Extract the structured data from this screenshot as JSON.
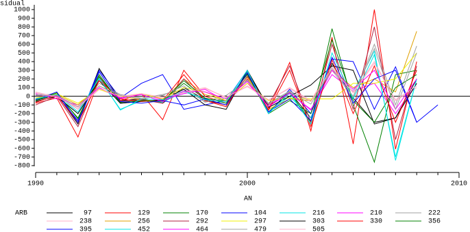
{
  "chart_data": {
    "type": "line",
    "y_label": "Residual",
    "x_label": "AN",
    "legend_title": "ARB",
    "x": [
      1990,
      1991,
      1992,
      1993,
      1994,
      1995,
      1996,
      1997,
      1998,
      1999,
      2000,
      2001,
      2002,
      2003,
      2004,
      2005,
      2006,
      2007,
      2008,
      2009
    ],
    "xlim": [
      1990,
      2010
    ],
    "xticks": [
      1990,
      2000,
      2010
    ],
    "ylim": [
      -800,
      1000
    ],
    "yticks": [
      -800,
      -700,
      -600,
      -500,
      -400,
      -300,
      -200,
      -100,
      0,
      100,
      200,
      300,
      400,
      500,
      600,
      700,
      800,
      900,
      1000
    ],
    "zero_line": true,
    "series": [
      {
        "name": "97",
        "color": "#000000",
        "values": [
          -50,
          20,
          -320,
          320,
          -50,
          -30,
          -80,
          100,
          -40,
          -100,
          280,
          -120,
          50,
          -250,
          380,
          -20,
          -300,
          -250,
          200,
          null
        ]
      },
      {
        "name": "129",
        "color": "#ff0000",
        "values": [
          -80,
          -20,
          -470,
          200,
          -50,
          30,
          -270,
          300,
          0,
          -80,
          200,
          -150,
          390,
          -400,
          680,
          -550,
          1000,
          -610,
          400,
          null
        ]
      },
      {
        "name": "170",
        "color": "#008000",
        "values": [
          -40,
          30,
          -250,
          250,
          -80,
          -60,
          -50,
          150,
          -30,
          -50,
          250,
          -180,
          50,
          -300,
          780,
          -100,
          -760,
          250,
          300,
          null
        ]
      },
      {
        "name": "104",
        "color": "#0000ff",
        "values": [
          -20,
          10,
          -280,
          300,
          -20,
          150,
          250,
          -150,
          -100,
          -50,
          300,
          -200,
          80,
          -200,
          430,
          400,
          -150,
          340,
          -300,
          -100
        ]
      },
      {
        "name": "216",
        "color": "#00e5e5",
        "values": [
          -60,
          0,
          -200,
          200,
          -150,
          -50,
          -70,
          50,
          -20,
          -80,
          280,
          -180,
          0,
          -250,
          350,
          50,
          520,
          -740,
          200,
          null
        ]
      },
      {
        "name": "210",
        "color": "#ff00ff",
        "values": [
          30,
          -30,
          -100,
          100,
          -30,
          30,
          -40,
          30,
          80,
          -60,
          150,
          -100,
          30,
          -150,
          250,
          60,
          150,
          -200,
          150,
          null
        ]
      },
      {
        "name": "222",
        "color": "#a0a0a0",
        "values": [
          20,
          20,
          -150,
          150,
          20,
          -20,
          20,
          80,
          -60,
          10,
          180,
          -80,
          60,
          -60,
          300,
          -10,
          600,
          -100,
          580,
          null
        ]
      },
      {
        "name": "238",
        "color": "#ffb0c8",
        "values": [
          40,
          0,
          -150,
          80,
          -10,
          20,
          -20,
          50,
          100,
          -20,
          120,
          -50,
          100,
          -50,
          350,
          50,
          400,
          -50,
          100,
          null
        ]
      },
      {
        "name": "256",
        "color": "#e0a000",
        "values": [
          -30,
          20,
          -100,
          120,
          0,
          -40,
          -60,
          200,
          20,
          -50,
          220,
          -150,
          -30,
          -50,
          300,
          100,
          200,
          50,
          750,
          null
        ]
      },
      {
        "name": "292",
        "color": "#b02040",
        "values": [
          -100,
          0,
          -350,
          220,
          -60,
          -40,
          -80,
          200,
          -50,
          -100,
          230,
          -100,
          350,
          -300,
          600,
          -150,
          800,
          -500,
          350,
          null
        ]
      },
      {
        "name": "297",
        "color": "#f0f000",
        "values": [
          -20,
          30,
          -80,
          80,
          0,
          30,
          -30,
          100,
          50,
          -50,
          150,
          -50,
          -20,
          -30,
          -30,
          150,
          150,
          200,
          500,
          null
        ]
      },
      {
        "name": "303",
        "color": "#000000",
        "values": [
          -60,
          0,
          -200,
          180,
          -80,
          -60,
          -40,
          80,
          -100,
          -150,
          300,
          -130,
          0,
          130,
          350,
          300,
          -320,
          -250,
          150,
          null
        ]
      },
      {
        "name": "330",
        "color": "#ff0000",
        "values": [
          -70,
          10,
          -300,
          180,
          -30,
          -60,
          -50,
          250,
          -50,
          -120,
          270,
          -160,
          300,
          -350,
          420,
          -200,
          350,
          -300,
          300,
          null
        ]
      },
      {
        "name": "356",
        "color": "#008000",
        "values": [
          -50,
          40,
          -260,
          230,
          -70,
          -50,
          -60,
          180,
          -20,
          -80,
          260,
          -200,
          -50,
          -200,
          650,
          -50,
          -300,
          100,
          250,
          null
        ]
      },
      {
        "name": "395",
        "color": "#0000ff",
        "values": [
          -40,
          50,
          -300,
          280,
          -60,
          -80,
          -50,
          -100,
          -30,
          -100,
          270,
          -180,
          -30,
          -280,
          450,
          -80,
          200,
          300,
          -300,
          null
        ]
      },
      {
        "name": "452",
        "color": "#00e5e5",
        "values": [
          -30,
          20,
          -180,
          210,
          -160,
          -30,
          -40,
          60,
          -40,
          -60,
          300,
          -200,
          40,
          -320,
          500,
          -30,
          480,
          -700,
          200,
          null
        ]
      },
      {
        "name": "464",
        "color": "#ff00ff",
        "values": [
          10,
          0,
          -120,
          100,
          -20,
          20,
          -60,
          60,
          50,
          -30,
          170,
          -120,
          40,
          -160,
          300,
          80,
          300,
          -150,
          200,
          null
        ]
      },
      {
        "name": "479",
        "color": "#a0a0a0",
        "values": [
          10,
          10,
          -120,
          120,
          10,
          -30,
          10,
          120,
          -70,
          -20,
          190,
          -90,
          50,
          -90,
          320,
          0,
          550,
          -150,
          500,
          null
        ]
      },
      {
        "name": "505",
        "color": "#ffb0c8",
        "values": [
          50,
          -10,
          -130,
          90,
          0,
          30,
          -10,
          40,
          90,
          -10,
          110,
          -40,
          90,
          -60,
          330,
          40,
          380,
          -40,
          120,
          null
        ]
      }
    ]
  }
}
